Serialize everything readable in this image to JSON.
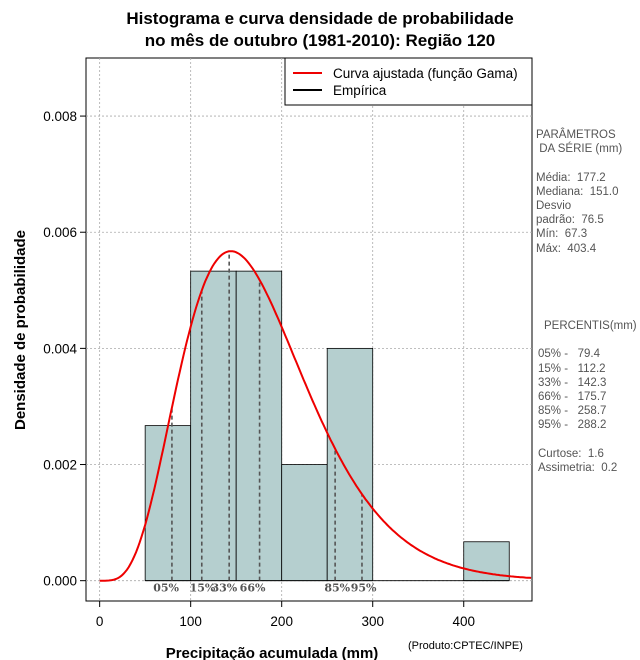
{
  "title_line1": "Histograma e curva densidade de probabilidade",
  "title_line2": "no mês de outubro (1981-2010): Região 120",
  "credit": "(Produto:CPTEC/INPE)",
  "colors": {
    "bar_fill": "#b5cfcf",
    "curve": "#ee0000",
    "grid": "#aaaaaa",
    "percentile_line": "#555555"
  },
  "stats": {
    "heading_line1": "PARÂMETROS",
    "heading_line2": " DA SÉRIE (mm)",
    "media": "Média:  177.2",
    "mediana": "Mediana:  151.0",
    "desvio_line1": "Desvio",
    "desvio_line2": "padrão:  76.5",
    "min": "Mín:  67.3",
    "max": "Máx:  403.4"
  },
  "percentis": {
    "heading": "PERCENTIS(mm)",
    "p05": "05% -   79.4",
    "p15": "15% -   112.2",
    "p33": "33% -   142.3",
    "p66": "66% -   175.7",
    "p85": "85% -   258.7",
    "p95": "95% -   288.2",
    "curtose": "Curtose:  1.6",
    "assimetria": "Assimetria:  0.2"
  },
  "chart_data": {
    "type": "bar",
    "title": "Histograma e curva densidade de probabilidade no mês de outubro (1981-2010): Região 120",
    "xlabel": "Precipitação acumulada (mm)",
    "ylabel": "Densidade de probabilidade",
    "xlim": [
      -15,
      475
    ],
    "ylim": [
      -0.00035,
      0.009
    ],
    "x_ticks": [
      0,
      100,
      200,
      300,
      400
    ],
    "y_ticks": [
      0.0,
      0.002,
      0.004,
      0.006,
      0.008
    ],
    "y_tick_labels": [
      "0.000",
      "0.002",
      "0.004",
      "0.006",
      "0.008"
    ],
    "grid": true,
    "bins": [
      {
        "x0": 50,
        "x1": 100,
        "density": 0.00267
      },
      {
        "x0": 100,
        "x1": 150,
        "density": 0.00533
      },
      {
        "x0": 150,
        "x1": 200,
        "density": 0.00533
      },
      {
        "x0": 200,
        "x1": 250,
        "density": 0.002
      },
      {
        "x0": 250,
        "x1": 300,
        "density": 0.004
      },
      {
        "x0": 300,
        "x1": 350,
        "density": 0
      },
      {
        "x0": 350,
        "x1": 400,
        "density": 0
      },
      {
        "x0": 400,
        "x1": 450,
        "density": 0.00067
      }
    ],
    "gamma_fit": {
      "shape": 5.37,
      "scale": 33.0
    },
    "percentiles": [
      {
        "label": "05%",
        "value": 79.4
      },
      {
        "label": "15%",
        "value": 112.2
      },
      {
        "label": "33%",
        "value": 142.3
      },
      {
        "label": "66%",
        "value": 175.7
      },
      {
        "label": "85%",
        "value": 258.7
      },
      {
        "label": "95%",
        "value": 288.2
      }
    ],
    "legend": {
      "position": "top-right",
      "entries": [
        {
          "label": "Curva ajustada (função Gama)",
          "color": "#ee0000"
        },
        {
          "label": "Empírica",
          "color": "#000000"
        }
      ]
    }
  }
}
